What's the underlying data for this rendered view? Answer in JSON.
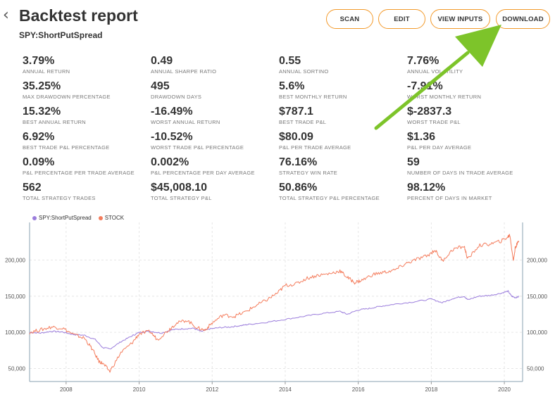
{
  "header": {
    "back_icon": "chevron-left-icon",
    "title": "Backtest report",
    "subtitle": "SPY:ShortPutSpread",
    "buttons": {
      "scan": "SCAN",
      "edit": "EDIT",
      "view_inputs": "VIEW INPUTS",
      "download": "DOWNLOAD"
    },
    "accent_color": "#f39a2b"
  },
  "stats": [
    {
      "value": "3.79%",
      "label": "ANNUAL RETURN"
    },
    {
      "value": "0.49",
      "label": "ANNUAL SHARPE RATIO"
    },
    {
      "value": "0.55",
      "label": "ANNUAL SORTINO"
    },
    {
      "value": "7.76%",
      "label": "ANNUAL VOLATILITY"
    },
    {
      "value": "35.25%",
      "label": "MAX DRAWDOWN PERCENTAGE"
    },
    {
      "value": "495",
      "label": "DRAWDOWN DAYS"
    },
    {
      "value": "5.6%",
      "label": "BEST MONTHLY RETURN"
    },
    {
      "value": "-7.91%",
      "label": "WORST MONTHLY RETURN"
    },
    {
      "value": "15.32%",
      "label": "BEST ANNUAL RETURN"
    },
    {
      "value": "-16.49%",
      "label": "WORST ANNUAL RETURN"
    },
    {
      "value": "$787.1",
      "label": "BEST TRADE P&L"
    },
    {
      "value": "$-2837.3",
      "label": "WORST TRADE P&L"
    },
    {
      "value": "6.92%",
      "label": "BEST TRADE P&L PERCENTAGE"
    },
    {
      "value": "-10.52%",
      "label": "WORST TRADE P&L PERCENTAGE"
    },
    {
      "value": "$80.09",
      "label": "P&L PER TRADE AVERAGE"
    },
    {
      "value": "$1.36",
      "label": "P&L PER DAY AVERAGE"
    },
    {
      "value": "0.09%",
      "label": "P&L PERCENTAGE PER TRADE AVERAGE"
    },
    {
      "value": "0.002%",
      "label": "P&L PERCENTAGE PER DAY AVERAGE"
    },
    {
      "value": "76.16%",
      "label": "STRATEGY WIN RATE"
    },
    {
      "value": "59",
      "label": "NUMBER OF DAYS IN TRADE AVERAGE"
    },
    {
      "value": "562",
      "label": "TOTAL STRATEGY TRADES"
    },
    {
      "value": "$45,008.10",
      "label": "TOTAL STRATEGY P&L"
    },
    {
      "value": "50.86%",
      "label": "TOTAL STRATEGY P&L PERCENTAGE"
    },
    {
      "value": "98.12%",
      "label": "PERCENT OF DAYS IN MARKET"
    }
  ],
  "annotation": {
    "icon": "green-arrow-icon",
    "color": "#7dc42a"
  },
  "chart_data": {
    "type": "line",
    "legend_position": "top-left",
    "series": [
      {
        "name": "SPY:ShortPutSpread",
        "color": "#9b7ddc",
        "x": [
          2007.0,
          2007.3,
          2007.6,
          2007.9,
          2008.2,
          2008.5,
          2008.8,
          2009.0,
          2009.2,
          2009.5,
          2009.8,
          2010.0,
          2010.3,
          2010.6,
          2010.9,
          2011.2,
          2011.5,
          2011.7,
          2011.9,
          2012.2,
          2012.5,
          2012.8,
          2013.0,
          2013.5,
          2014.0,
          2014.5,
          2015.0,
          2015.5,
          2015.7,
          2016.0,
          2016.3,
          2016.6,
          2017.0,
          2017.5,
          2018.0,
          2018.3,
          2018.6,
          2018.9,
          2019.0,
          2019.3,
          2019.6,
          2019.9,
          2020.1,
          2020.2,
          2020.3,
          2020.4
        ],
        "values": [
          100000,
          99000,
          101500,
          100500,
          97000,
          96000,
          90000,
          79000,
          77000,
          87000,
          95000,
          100000,
          101500,
          99000,
          103500,
          105000,
          105500,
          101000,
          104500,
          106500,
          107500,
          109500,
          111000,
          114000,
          118000,
          122000,
          126000,
          129000,
          125000,
          131000,
          133000,
          136000,
          139000,
          142000,
          146000,
          141000,
          147000,
          150000,
          145000,
          150000,
          151000,
          154000,
          157000,
          150000,
          148000,
          149500
        ]
      },
      {
        "name": "STOCK",
        "color": "#f47c5c",
        "x": [
          2007.0,
          2007.3,
          2007.6,
          2007.9,
          2008.2,
          2008.5,
          2008.7,
          2008.9,
          2009.0,
          2009.2,
          2009.5,
          2009.8,
          2010.0,
          2010.3,
          2010.5,
          2010.8,
          2011.0,
          2011.3,
          2011.6,
          2011.8,
          2012.0,
          2012.3,
          2012.6,
          2012.9,
          2013.2,
          2013.5,
          2013.8,
          2014.0,
          2014.3,
          2014.6,
          2014.9,
          2015.2,
          2015.5,
          2015.7,
          2015.9,
          2016.1,
          2016.4,
          2016.7,
          2017.0,
          2017.3,
          2017.6,
          2017.9,
          2018.1,
          2018.3,
          2018.6,
          2018.9,
          2019.0,
          2019.3,
          2019.6,
          2019.9,
          2020.1,
          2020.15,
          2020.25,
          2020.3,
          2020.4
        ],
        "values": [
          100000,
          103500,
          107500,
          106000,
          97000,
          92000,
          78000,
          60000,
          57000,
          46000,
          72000,
          85000,
          98000,
          101000,
          90000,
          103000,
          112000,
          117000,
          106000,
          103000,
          113000,
          124000,
          122000,
          128000,
          137000,
          145000,
          155000,
          165000,
          167000,
          175000,
          179000,
          181000,
          185000,
          176000,
          169000,
          172000,
          180000,
          183000,
          186000,
          195000,
          201000,
          206000,
          214000,
          199000,
          215000,
          219000,
          201000,
          220000,
          222000,
          226000,
          232000,
          235000,
          199000,
          218000,
          226000
        ]
      }
    ],
    "x_ticks": [
      "2008",
      "2010",
      "2012",
      "2014",
      "2016",
      "2018",
      "2020"
    ],
    "y_ticks": [
      "50,000",
      "100,000",
      "150,000",
      "200,000"
    ],
    "ylim": [
      32000,
      252000
    ],
    "xlim": [
      2007.0,
      2020.5
    ],
    "grid": true
  }
}
